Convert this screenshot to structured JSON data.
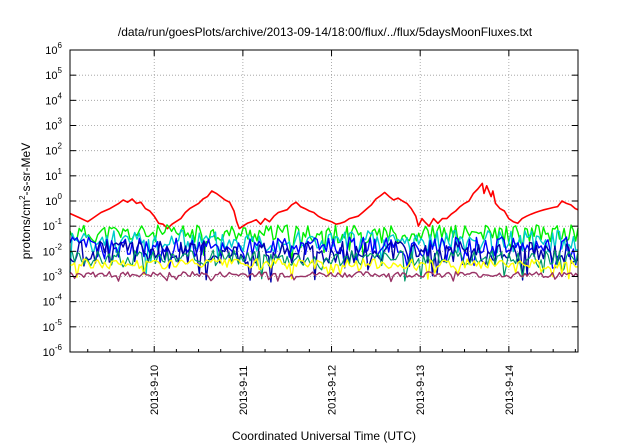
{
  "chart_data": {
    "type": "line",
    "title": "/data/run/goesPlots/archive/2013-09-14/18:00/flux/../flux/5daysMoonFluxes.txt",
    "xlabel": "Coordinated Universal Time (UTC)",
    "ylabel": "protons/cm2-s-sr-MeV",
    "ylabel_parts": {
      "pre": "protons/cm",
      "sup": "2",
      "post": "-s-sr-MeV"
    },
    "y_scale": "log",
    "ylim_exp": [
      -6,
      6
    ],
    "y_ticks": [
      {
        "base": "10",
        "exp": "6"
      },
      {
        "base": "10",
        "exp": "5"
      },
      {
        "base": "10",
        "exp": "4"
      },
      {
        "base": "10",
        "exp": "3"
      },
      {
        "base": "10",
        "exp": "2"
      },
      {
        "base": "10",
        "exp": "1"
      },
      {
        "base": "10",
        "exp": "0"
      },
      {
        "base": "10",
        "exp": "-1"
      },
      {
        "base": "10",
        "exp": "-2"
      },
      {
        "base": "10",
        "exp": "-3"
      },
      {
        "base": "10",
        "exp": "-4"
      },
      {
        "base": "10",
        "exp": "-5"
      },
      {
        "base": "10",
        "exp": "-6"
      }
    ],
    "xlim_days": [
      9.05,
      14.78
    ],
    "x_ticks": [
      {
        "label": "2013-9-10",
        "day": 10
      },
      {
        "label": "2013-9-11",
        "day": 11
      },
      {
        "label": "2013-9-12",
        "day": 12
      },
      {
        "label": "2013-9-13",
        "day": 13
      },
      {
        "label": "2013-9-14",
        "day": 14
      }
    ],
    "grid": true,
    "series": [
      {
        "color": "#ff0000",
        "width": 1.6,
        "points": [
          [
            9.05,
            0.32
          ],
          [
            9.15,
            0.22
          ],
          [
            9.25,
            0.15
          ],
          [
            9.3,
            0.2
          ],
          [
            9.4,
            0.35
          ],
          [
            9.5,
            0.5
          ],
          [
            9.6,
            0.8
          ],
          [
            9.65,
            1.1
          ],
          [
            9.7,
            0.9
          ],
          [
            9.75,
            1.2
          ],
          [
            9.8,
            0.8
          ],
          [
            9.85,
            0.9
          ],
          [
            9.9,
            0.5
          ],
          [
            9.95,
            0.4
          ],
          [
            10.0,
            0.25
          ],
          [
            10.05,
            0.13
          ],
          [
            10.1,
            0.12
          ],
          [
            10.15,
            0.08
          ],
          [
            10.2,
            0.12
          ],
          [
            10.3,
            0.2
          ],
          [
            10.35,
            0.35
          ],
          [
            10.4,
            0.5
          ],
          [
            10.5,
            0.8
          ],
          [
            10.55,
            1.2
          ],
          [
            10.6,
            1.5
          ],
          [
            10.65,
            2.5
          ],
          [
            10.7,
            2.0
          ],
          [
            10.75,
            1.5
          ],
          [
            10.8,
            1.1
          ],
          [
            10.85,
            0.9
          ],
          [
            10.9,
            0.4
          ],
          [
            10.93,
            0.15
          ],
          [
            10.96,
            0.08
          ],
          [
            11.0,
            0.1
          ],
          [
            11.05,
            0.13
          ],
          [
            11.1,
            0.15
          ],
          [
            11.15,
            0.18
          ],
          [
            11.2,
            0.12
          ],
          [
            11.25,
            0.2
          ],
          [
            11.3,
            0.15
          ],
          [
            11.35,
            0.25
          ],
          [
            11.4,
            0.35
          ],
          [
            11.5,
            0.45
          ],
          [
            11.55,
            0.7
          ],
          [
            11.6,
            0.9
          ],
          [
            11.65,
            0.6
          ],
          [
            11.7,
            0.5
          ],
          [
            11.75,
            0.4
          ],
          [
            11.8,
            0.35
          ],
          [
            11.85,
            0.25
          ],
          [
            11.9,
            0.2
          ],
          [
            12.0,
            0.15
          ],
          [
            12.05,
            0.12
          ],
          [
            12.1,
            0.13
          ],
          [
            12.15,
            0.15
          ],
          [
            12.2,
            0.2
          ],
          [
            12.3,
            0.25
          ],
          [
            12.35,
            0.35
          ],
          [
            12.4,
            0.5
          ],
          [
            12.45,
            0.7
          ],
          [
            12.5,
            1.2
          ],
          [
            12.55,
            1.6
          ],
          [
            12.6,
            2.2
          ],
          [
            12.65,
            1.5
          ],
          [
            12.7,
            1.1
          ],
          [
            12.75,
            1.3
          ],
          [
            12.8,
            1.0
          ],
          [
            12.85,
            0.8
          ],
          [
            12.9,
            0.5
          ],
          [
            12.95,
            0.25
          ],
          [
            12.98,
            0.1
          ],
          [
            13.02,
            0.2
          ],
          [
            13.05,
            0.15
          ],
          [
            13.1,
            0.1
          ],
          [
            13.15,
            0.2
          ],
          [
            13.2,
            0.13
          ],
          [
            13.25,
            0.2
          ],
          [
            13.3,
            0.2
          ],
          [
            13.35,
            0.3
          ],
          [
            13.4,
            0.4
          ],
          [
            13.45,
            0.6
          ],
          [
            13.5,
            0.8
          ],
          [
            13.55,
            1.0
          ],
          [
            13.6,
            2.0
          ],
          [
            13.65,
            3.0
          ],
          [
            13.7,
            5.0
          ],
          [
            13.72,
            2.0
          ],
          [
            13.75,
            4.0
          ],
          [
            13.8,
            1.5
          ],
          [
            13.82,
            2.5
          ],
          [
            13.85,
            0.8
          ],
          [
            13.9,
            0.5
          ],
          [
            13.95,
            0.4
          ],
          [
            14.0,
            0.2
          ],
          [
            14.05,
            0.15
          ],
          [
            14.1,
            0.13
          ],
          [
            14.15,
            0.2
          ],
          [
            14.2,
            0.25
          ],
          [
            14.25,
            0.3
          ],
          [
            14.3,
            0.35
          ],
          [
            14.35,
            0.4
          ],
          [
            14.4,
            0.45
          ],
          [
            14.45,
            0.5
          ],
          [
            14.5,
            0.55
          ],
          [
            14.55,
            0.6
          ],
          [
            14.6,
            1.0
          ],
          [
            14.65,
            0.8
          ],
          [
            14.7,
            0.7
          ],
          [
            14.75,
            0.5
          ],
          [
            14.78,
            0.45
          ]
        ]
      },
      {
        "color": "#00ee00",
        "width": 1.4,
        "base": 0.05,
        "amp": 0.8,
        "seed": 11
      },
      {
        "color": "#00cccc",
        "width": 1.4,
        "base": 0.025,
        "amp": 1.0,
        "seed": 23
      },
      {
        "color": "#0000ff",
        "width": 1.4,
        "base": 0.015,
        "amp": 0.9,
        "seed": 37
      },
      {
        "color": "#0000aa",
        "width": 1.4,
        "base": 0.009,
        "amp": 1.0,
        "seed": 51
      },
      {
        "color": "#009966",
        "width": 1.2,
        "base": 0.0055,
        "amp": 0.7,
        "seed": 67
      },
      {
        "color": "#ffff00",
        "width": 1.4,
        "base": 0.0032,
        "amp": 0.45,
        "seed": 79
      },
      {
        "color": "#993366",
        "width": 1.4,
        "base": 0.0012,
        "amp": 0.25,
        "seed": 93
      }
    ]
  }
}
